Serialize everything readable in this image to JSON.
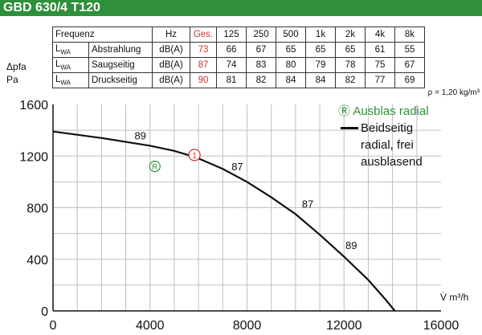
{
  "header": {
    "title": "GBD 630/4 T120"
  },
  "table": {
    "header_row": [
      "Frequenz",
      "Hz",
      "Ges.",
      "125",
      "250",
      "500",
      "1k",
      "2k",
      "4k",
      "8k"
    ],
    "rows": [
      {
        "lwa": "LWA",
        "desc": "Abstrahlung",
        "unit": "dB(A)",
        "ges": "73",
        "values": [
          "66",
          "67",
          "65",
          "65",
          "65",
          "61",
          "55"
        ]
      },
      {
        "lwa": "LWA",
        "desc": "Saugseitig",
        "unit": "dB(A)",
        "ges": "87",
        "values": [
          "74",
          "83",
          "80",
          "79",
          "78",
          "75",
          "67"
        ]
      },
      {
        "lwa": "LWA",
        "desc": "Druckseitig",
        "unit": "dB(A)",
        "ges": "90",
        "values": [
          "81",
          "82",
          "84",
          "84",
          "82",
          "77",
          "69"
        ]
      }
    ],
    "density_note": "ρ = 1,20 kg/m³"
  },
  "chart_data": {
    "type": "line",
    "ylabel_line1": "Δpfa",
    "ylabel_line2": "Pa",
    "xlabel": "V̇ m³/h",
    "xlim": [
      0,
      16000
    ],
    "ylim": [
      0,
      1600
    ],
    "x_ticks": [
      "0",
      "4000",
      "8000",
      "12000",
      "16000"
    ],
    "y_ticks": [
      "0",
      "400",
      "800",
      "1200",
      "1600"
    ],
    "grid": true,
    "series": [
      {
        "name": "Beidseitig radial, frei ausblasend",
        "points": [
          [
            0,
            1390
          ],
          [
            2000,
            1340
          ],
          [
            4000,
            1280
          ],
          [
            5000,
            1240
          ],
          [
            5900,
            1190
          ],
          [
            7000,
            1100
          ],
          [
            8000,
            1000
          ],
          [
            9000,
            880
          ],
          [
            10000,
            750
          ],
          [
            11000,
            590
          ],
          [
            12000,
            420
          ],
          [
            13000,
            240
          ],
          [
            13700,
            90
          ],
          [
            14100,
            0
          ]
        ]
      }
    ],
    "efficiency_labels": [
      {
        "text": "89",
        "x": 3600,
        "y": 1330
      },
      {
        "text": "87",
        "x": 7600,
        "y": 1090
      },
      {
        "text": "87",
        "x": 10500,
        "y": 800
      },
      {
        "text": "89",
        "x": 12300,
        "y": 480
      }
    ],
    "operating_point": {
      "label": "1",
      "x": 5900,
      "y": 1190
    },
    "radial_marker": {
      "label": "R",
      "x": 4200,
      "y": 1120
    },
    "legend": {
      "radial_label": "Ⓡ Ausblas radial",
      "line_label_lines": [
        "Beidseitig",
        "radial, frei",
        "ausblasend"
      ],
      "position": "top-right"
    },
    "colors": {
      "curve": "#111111",
      "grid": "#bfbfbf",
      "accent_red": "#d0312d",
      "accent_green": "#2f8f3b"
    }
  }
}
